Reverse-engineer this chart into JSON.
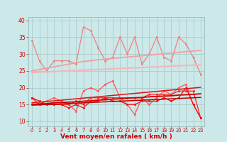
{
  "x": [
    0,
    1,
    2,
    3,
    4,
    5,
    6,
    7,
    8,
    9,
    10,
    11,
    12,
    13,
    14,
    15,
    16,
    17,
    18,
    19,
    20,
    21,
    22,
    23
  ],
  "series": [
    {
      "name": "rafales_jagged",
      "color": "#f08080",
      "lw": 0.9,
      "marker": "o",
      "ms": 1.8,
      "values": [
        34,
        28,
        25,
        28,
        28,
        28,
        27,
        38,
        37,
        32,
        28,
        29,
        35,
        30,
        35,
        27,
        30,
        35,
        29,
        28,
        35,
        33,
        29,
        24
      ]
    },
    {
      "name": "rafales_trend1",
      "color": "#f0a0a0",
      "lw": 1.3,
      "marker": null,
      "ms": 0,
      "values": [
        25,
        25.4,
        25.8,
        26.2,
        26.6,
        27.0,
        27.4,
        27.8,
        28.0,
        28.3,
        28.5,
        28.7,
        28.9,
        29.1,
        29.3,
        29.5,
        29.7,
        29.9,
        30.1,
        30.3,
        30.5,
        30.7,
        30.9,
        31.1
      ]
    },
    {
      "name": "rafales_trend2",
      "color": "#f0b8b8",
      "lw": 1.5,
      "marker": null,
      "ms": 0,
      "values": [
        24.5,
        24.6,
        24.7,
        24.8,
        24.9,
        25.0,
        25.1,
        25.2,
        25.3,
        25.4,
        25.5,
        25.6,
        25.7,
        25.8,
        25.9,
        26.0,
        26.1,
        26.2,
        26.3,
        26.4,
        26.5,
        26.6,
        26.7,
        26.8
      ]
    },
    {
      "name": "vent_jagged_upper",
      "color": "#ff5555",
      "lw": 0.9,
      "marker": "o",
      "ms": 1.8,
      "values": [
        17,
        15,
        16,
        17,
        16,
        15,
        13,
        19,
        20,
        19,
        21,
        22,
        17,
        15,
        12,
        17,
        15,
        17,
        19,
        18,
        20,
        21,
        15,
        11
      ]
    },
    {
      "name": "vent_trend_upper",
      "color": "#dd1111",
      "lw": 1.1,
      "marker": null,
      "ms": 0,
      "values": [
        15.5,
        15.7,
        15.9,
        16.1,
        16.3,
        16.5,
        16.7,
        16.9,
        17.1,
        17.3,
        17.5,
        17.7,
        17.9,
        18.1,
        18.3,
        18.5,
        18.7,
        18.9,
        19.1,
        19.3,
        19.5,
        19.7,
        19.9,
        20.1
      ]
    },
    {
      "name": "vent_jagged_mid",
      "color": "#ff2222",
      "lw": 0.9,
      "marker": "o",
      "ms": 1.8,
      "values": [
        17,
        15,
        15,
        15,
        15,
        15,
        16,
        15,
        17,
        17,
        17,
        17,
        17,
        17,
        17,
        17,
        18,
        18,
        18,
        18,
        19,
        19,
        19,
        11
      ]
    },
    {
      "name": "vent_trend_mid",
      "color": "#cc0000",
      "lw": 1.3,
      "marker": null,
      "ms": 0,
      "values": [
        15.0,
        15.2,
        15.3,
        15.5,
        15.6,
        15.7,
        15.8,
        16.0,
        16.1,
        16.3,
        16.4,
        16.6,
        16.7,
        16.9,
        17.0,
        17.1,
        17.3,
        17.4,
        17.5,
        17.6,
        17.8,
        17.9,
        18.0,
        18.2
      ]
    },
    {
      "name": "vent_jagged_low",
      "color": "#ee1111",
      "lw": 0.9,
      "marker": "o",
      "ms": 1.8,
      "values": [
        17,
        16,
        15,
        15,
        15,
        14,
        15,
        14,
        16,
        16,
        17,
        16,
        16,
        15,
        15,
        16,
        16,
        16,
        17,
        16,
        17,
        20,
        15,
        11
      ]
    },
    {
      "name": "vent_trend_low",
      "color": "#bb0000",
      "lw": 1.1,
      "marker": null,
      "ms": 0,
      "values": [
        14.8,
        14.9,
        15.0,
        15.1,
        15.2,
        15.3,
        15.4,
        15.5,
        15.6,
        15.7,
        15.8,
        15.9,
        16.0,
        16.1,
        16.2,
        16.3,
        16.4,
        16.5,
        16.6,
        16.7,
        16.8,
        16.9,
        17.0,
        17.1
      ]
    }
  ],
  "xlabel": "Vent moyen/en rafales ( km/h )",
  "xlabel_color": "#cc0000",
  "xlabel_fontsize": 6.5,
  "bg_color": "#cce8e8",
  "grid_color": "#aacccc",
  "tick_color": "#cc0000",
  "yticks": [
    10,
    15,
    20,
    25,
    30,
    35,
    40
  ],
  "ylim": [
    8.5,
    41
  ],
  "xlim": [
    -0.5,
    23.5
  ],
  "arrow_color": "#cc0000"
}
